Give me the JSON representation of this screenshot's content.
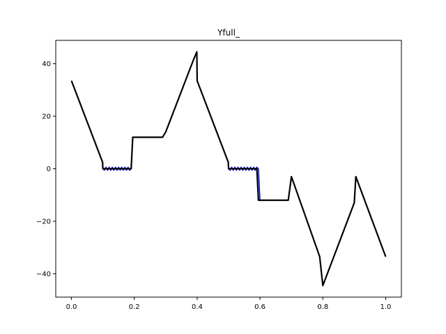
{
  "chart_data": {
    "type": "line",
    "title": "Yfull_",
    "xlabel": "",
    "ylabel": "",
    "xlim": [
      -0.05,
      1.05
    ],
    "ylim": [
      -48.9,
      48.9
    ],
    "x_ticks": [
      0.0,
      0.2,
      0.4,
      0.6,
      0.8,
      1.0
    ],
    "x_tick_labels": [
      "0.0",
      "0.2",
      "0.4",
      "0.6",
      "0.8",
      "1.0"
    ],
    "y_ticks": [
      -40,
      -20,
      0,
      20,
      40
    ],
    "y_tick_labels": [
      "−40",
      "−20",
      "0",
      "20",
      "40"
    ],
    "grid": false,
    "legend": "none",
    "series": [
      {
        "color": "#0000cc",
        "line_width": 1.5,
        "x": [
          0.0,
          0.099,
          0.1,
          0.105,
          0.11,
          0.115,
          0.12,
          0.125,
          0.13,
          0.135,
          0.14,
          0.145,
          0.15,
          0.155,
          0.16,
          0.165,
          0.17,
          0.175,
          0.18,
          0.185,
          0.19,
          0.195,
          0.2,
          0.29,
          0.3,
          0.39,
          0.399,
          0.4,
          0.499,
          0.5,
          0.505,
          0.51,
          0.515,
          0.52,
          0.525,
          0.53,
          0.535,
          0.54,
          0.545,
          0.55,
          0.555,
          0.56,
          0.565,
          0.57,
          0.575,
          0.58,
          0.585,
          0.59,
          0.595,
          0.6,
          0.69,
          0.7,
          0.79,
          0.8,
          0.9,
          0.905,
          1.0
        ],
        "y": [
          33.5,
          2.5,
          0.0,
          -0.6,
          0.6,
          -0.6,
          0.6,
          -0.6,
          0.6,
          -0.6,
          0.6,
          -0.6,
          0.6,
          -0.6,
          0.6,
          -0.6,
          0.6,
          -0.6,
          0.6,
          -0.6,
          0.0,
          12.0,
          12.0,
          12.0,
          14.0,
          42.0,
          44.5,
          33.5,
          2.5,
          0.0,
          -0.6,
          0.6,
          -0.6,
          0.6,
          -0.6,
          0.6,
          -0.6,
          0.6,
          -0.6,
          0.6,
          -0.6,
          0.6,
          -0.6,
          0.6,
          -0.6,
          0.6,
          -0.6,
          0.6,
          0.0,
          -12.0,
          -12.0,
          -3.0,
          -33.5,
          -44.5,
          -13.0,
          -3.0,
          -33.5
        ]
      },
      {
        "color": "#000000",
        "line_width": 2.2,
        "x": [
          0.0,
          0.099,
          0.1,
          0.19,
          0.195,
          0.2,
          0.29,
          0.3,
          0.39,
          0.399,
          0.4,
          0.499,
          0.5,
          0.59,
          0.595,
          0.6,
          0.69,
          0.7,
          0.79,
          0.8,
          0.9,
          0.905,
          1.0
        ],
        "y": [
          33.5,
          2.5,
          0.0,
          0.0,
          12.0,
          12.0,
          12.0,
          14.0,
          42.0,
          44.5,
          33.5,
          2.5,
          0.0,
          0.0,
          -12.0,
          -12.0,
          -12.0,
          -3.0,
          -33.5,
          -44.5,
          -13.0,
          -3.0,
          -33.5
        ]
      }
    ]
  }
}
